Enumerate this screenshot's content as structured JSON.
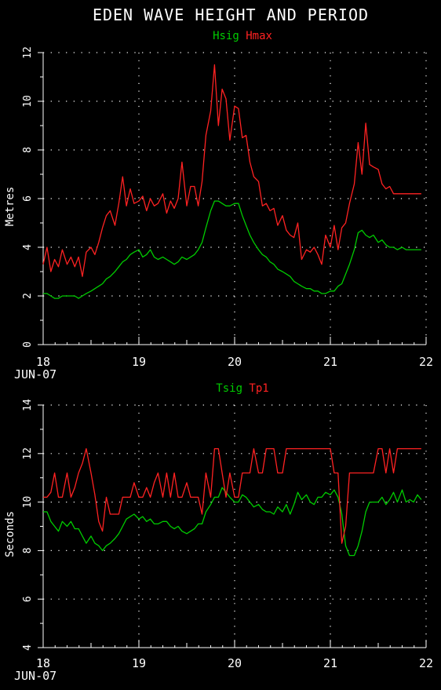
{
  "title": "EDEN WAVE HEIGHT AND PERIOD",
  "colors": {
    "background": "#000000",
    "axis": "#ffffff",
    "green": "#00cc00",
    "red": "#ff2222"
  },
  "chart_data": [
    {
      "type": "line",
      "ylabel": "Metres",
      "xlabel": "JUN-07",
      "legend": [
        {
          "name": "Hsig",
          "color": "#00cc00"
        },
        {
          "name": "Hmax",
          "color": "#ff2222"
        }
      ],
      "xlim": [
        18,
        22
      ],
      "ylim": [
        0,
        12
      ],
      "x_ticks": [
        18,
        19,
        20,
        21,
        22
      ],
      "y_ticks": [
        0,
        2,
        4,
        6,
        8,
        10,
        12
      ],
      "grid": true,
      "series": [
        {
          "name": "Hsig",
          "color": "#00cc00",
          "x": [
            18.0,
            18.04,
            18.08,
            18.12,
            18.16,
            18.2,
            18.25,
            18.29,
            18.33,
            18.37,
            18.41,
            18.45,
            18.5,
            18.54,
            18.58,
            18.62,
            18.66,
            18.7,
            18.75,
            18.79,
            18.83,
            18.87,
            18.91,
            18.95,
            19.0,
            19.04,
            19.08,
            19.12,
            19.16,
            19.2,
            19.25,
            19.29,
            19.33,
            19.37,
            19.41,
            19.45,
            19.5,
            19.54,
            19.58,
            19.62,
            19.66,
            19.7,
            19.75,
            19.79,
            19.83,
            19.87,
            19.91,
            19.95,
            20.0,
            20.04,
            20.08,
            20.12,
            20.16,
            20.2,
            20.25,
            20.29,
            20.33,
            20.37,
            20.41,
            20.45,
            20.5,
            20.54,
            20.58,
            20.62,
            20.66,
            20.7,
            20.75,
            20.79,
            20.83,
            20.87,
            20.91,
            20.95,
            21.0,
            21.04,
            21.08,
            21.12,
            21.16,
            21.2,
            21.25,
            21.29,
            21.33,
            21.37,
            21.41,
            21.45,
            21.5,
            21.54,
            21.58,
            21.62,
            21.66,
            21.7,
            21.75,
            21.79,
            21.83,
            21.87,
            21.91,
            21.95
          ],
          "values": [
            2.1,
            2.1,
            2.0,
            1.9,
            1.9,
            2.0,
            2.0,
            2.0,
            2.0,
            1.9,
            2.0,
            2.1,
            2.2,
            2.3,
            2.4,
            2.5,
            2.7,
            2.8,
            3.0,
            3.2,
            3.4,
            3.5,
            3.7,
            3.8,
            3.9,
            3.6,
            3.7,
            3.9,
            3.6,
            3.5,
            3.6,
            3.5,
            3.4,
            3.3,
            3.4,
            3.6,
            3.5,
            3.6,
            3.7,
            3.9,
            4.2,
            4.8,
            5.5,
            5.9,
            5.9,
            5.8,
            5.7,
            5.7,
            5.8,
            5.8,
            5.3,
            4.9,
            4.5,
            4.2,
            3.9,
            3.7,
            3.6,
            3.4,
            3.3,
            3.1,
            3.0,
            2.9,
            2.8,
            2.6,
            2.5,
            2.4,
            2.3,
            2.3,
            2.2,
            2.2,
            2.1,
            2.1,
            2.2,
            2.2,
            2.4,
            2.5,
            2.9,
            3.3,
            3.9,
            4.6,
            4.7,
            4.5,
            4.4,
            4.5,
            4.2,
            4.3,
            4.1,
            4.0,
            4.0,
            3.9,
            4.0,
            3.9,
            3.9,
            3.9,
            3.9,
            3.9
          ]
        },
        {
          "name": "Hmax",
          "color": "#ff2222",
          "x": [
            18.0,
            18.04,
            18.08,
            18.12,
            18.16,
            18.2,
            18.25,
            18.29,
            18.33,
            18.37,
            18.41,
            18.45,
            18.5,
            18.54,
            18.58,
            18.62,
            18.66,
            18.7,
            18.75,
            18.79,
            18.83,
            18.87,
            18.91,
            18.95,
            19.0,
            19.04,
            19.08,
            19.12,
            19.16,
            19.2,
            19.25,
            19.29,
            19.33,
            19.37,
            19.41,
            19.45,
            19.5,
            19.54,
            19.58,
            19.62,
            19.66,
            19.7,
            19.75,
            19.79,
            19.83,
            19.87,
            19.91,
            19.95,
            20.0,
            20.04,
            20.08,
            20.12,
            20.16,
            20.2,
            20.25,
            20.29,
            20.33,
            20.37,
            20.41,
            20.45,
            20.5,
            20.54,
            20.58,
            20.62,
            20.66,
            20.7,
            20.75,
            20.79,
            20.83,
            20.87,
            20.91,
            20.95,
            21.0,
            21.04,
            21.08,
            21.12,
            21.16,
            21.2,
            21.25,
            21.29,
            21.33,
            21.37,
            21.41,
            21.45,
            21.5,
            21.54,
            21.58,
            21.62,
            21.66,
            21.7,
            21.75,
            21.79,
            21.83,
            21.87,
            21.91,
            21.95
          ],
          "values": [
            3.3,
            4.0,
            3.0,
            3.5,
            3.2,
            3.9,
            3.3,
            3.6,
            3.2,
            3.6,
            2.8,
            3.8,
            4.0,
            3.7,
            4.2,
            4.8,
            5.3,
            5.5,
            4.9,
            5.8,
            6.9,
            5.7,
            6.4,
            5.8,
            5.9,
            6.1,
            5.5,
            6.0,
            5.7,
            5.8,
            6.2,
            5.4,
            5.9,
            5.6,
            6.0,
            7.5,
            5.7,
            6.5,
            6.5,
            5.7,
            6.7,
            8.6,
            9.6,
            11.5,
            9.0,
            10.5,
            10.1,
            8.4,
            9.8,
            9.7,
            8.5,
            8.6,
            7.5,
            6.9,
            6.7,
            5.7,
            5.8,
            5.5,
            5.6,
            4.9,
            5.3,
            4.7,
            4.5,
            4.4,
            5.0,
            3.5,
            3.9,
            3.8,
            4.0,
            3.7,
            3.3,
            4.5,
            4.0,
            4.9,
            3.9,
            4.8,
            5.0,
            5.8,
            6.6,
            8.3,
            7.0,
            9.1,
            7.4,
            7.3,
            7.2,
            6.6,
            6.4,
            6.5,
            6.2,
            6.2,
            6.2,
            6.2,
            6.2,
            6.2,
            6.2,
            6.2
          ]
        }
      ]
    },
    {
      "type": "line",
      "ylabel": "Seconds",
      "xlabel": "JUN-07",
      "legend": [
        {
          "name": "Tsig",
          "color": "#00cc00"
        },
        {
          "name": "Tp1",
          "color": "#ff2222"
        }
      ],
      "xlim": [
        18,
        22
      ],
      "ylim": [
        4,
        14
      ],
      "x_ticks": [
        18,
        19,
        20,
        21,
        22
      ],
      "y_ticks": [
        4,
        6,
        8,
        10,
        12,
        14
      ],
      "grid": true,
      "series": [
        {
          "name": "Tsig",
          "color": "#00cc00",
          "x": [
            18.0,
            18.04,
            18.08,
            18.12,
            18.16,
            18.2,
            18.25,
            18.29,
            18.33,
            18.37,
            18.41,
            18.45,
            18.5,
            18.54,
            18.58,
            18.62,
            18.66,
            18.7,
            18.75,
            18.79,
            18.83,
            18.87,
            18.91,
            18.95,
            19.0,
            19.04,
            19.08,
            19.12,
            19.16,
            19.2,
            19.25,
            19.29,
            19.33,
            19.37,
            19.41,
            19.45,
            19.5,
            19.54,
            19.58,
            19.62,
            19.66,
            19.7,
            19.75,
            19.79,
            19.83,
            19.87,
            19.91,
            19.95,
            20.0,
            20.04,
            20.08,
            20.12,
            20.16,
            20.2,
            20.25,
            20.29,
            20.33,
            20.37,
            20.41,
            20.45,
            20.5,
            20.54,
            20.58,
            20.62,
            20.66,
            20.7,
            20.75,
            20.79,
            20.83,
            20.87,
            20.91,
            20.95,
            21.0,
            21.04,
            21.08,
            21.12,
            21.16,
            21.2,
            21.25,
            21.29,
            21.33,
            21.37,
            21.41,
            21.45,
            21.5,
            21.54,
            21.58,
            21.62,
            21.66,
            21.7,
            21.75,
            21.79,
            21.83,
            21.87,
            21.91,
            21.95
          ],
          "values": [
            9.6,
            9.6,
            9.2,
            9.0,
            8.8,
            9.2,
            9.0,
            9.2,
            8.9,
            8.9,
            8.6,
            8.3,
            8.6,
            8.3,
            8.2,
            8.0,
            8.2,
            8.3,
            8.5,
            8.7,
            9.0,
            9.3,
            9.4,
            9.5,
            9.3,
            9.4,
            9.2,
            9.3,
            9.1,
            9.1,
            9.2,
            9.2,
            9.0,
            8.9,
            9.0,
            8.8,
            8.7,
            8.8,
            8.9,
            9.1,
            9.1,
            9.6,
            9.9,
            10.2,
            10.2,
            10.6,
            10.4,
            10.2,
            10.0,
            10.0,
            10.3,
            10.2,
            10.0,
            9.8,
            9.9,
            9.7,
            9.6,
            9.6,
            9.5,
            9.8,
            9.6,
            9.9,
            9.5,
            9.9,
            10.4,
            10.1,
            10.3,
            10.0,
            9.9,
            10.2,
            10.2,
            10.4,
            10.3,
            10.5,
            10.2,
            9.5,
            8.2,
            7.8,
            7.8,
            8.2,
            8.8,
            9.6,
            10.0,
            10.0,
            10.0,
            10.2,
            9.9,
            10.1,
            10.4,
            10.0,
            10.5,
            10.0,
            10.1,
            10.0,
            10.3,
            10.1
          ]
        },
        {
          "name": "Tp1",
          "color": "#ff2222",
          "x": [
            18.0,
            18.04,
            18.08,
            18.12,
            18.16,
            18.2,
            18.25,
            18.29,
            18.33,
            18.37,
            18.41,
            18.45,
            18.5,
            18.54,
            18.58,
            18.62,
            18.66,
            18.7,
            18.75,
            18.79,
            18.83,
            18.87,
            18.91,
            18.95,
            19.0,
            19.04,
            19.08,
            19.12,
            19.16,
            19.2,
            19.25,
            19.29,
            19.33,
            19.37,
            19.41,
            19.45,
            19.5,
            19.54,
            19.58,
            19.62,
            19.66,
            19.7,
            19.75,
            19.79,
            19.83,
            19.87,
            19.91,
            19.95,
            20.0,
            20.04,
            20.08,
            20.12,
            20.16,
            20.2,
            20.25,
            20.29,
            20.33,
            20.37,
            20.41,
            20.45,
            20.5,
            20.54,
            20.58,
            20.62,
            20.66,
            20.7,
            20.75,
            20.79,
            20.83,
            20.87,
            20.91,
            20.95,
            21.0,
            21.04,
            21.08,
            21.12,
            21.16,
            21.2,
            21.25,
            21.29,
            21.33,
            21.37,
            21.41,
            21.45,
            21.5,
            21.54,
            21.58,
            21.62,
            21.66,
            21.7,
            21.75,
            21.79,
            21.83,
            21.87,
            21.91,
            21.95
          ],
          "values": [
            10.2,
            10.2,
            10.4,
            11.2,
            10.2,
            10.2,
            11.2,
            10.2,
            10.6,
            11.2,
            11.6,
            12.2,
            11.2,
            10.3,
            9.2,
            8.8,
            10.2,
            9.5,
            9.5,
            9.5,
            10.2,
            10.2,
            10.2,
            10.8,
            10.2,
            10.2,
            10.6,
            10.2,
            10.8,
            11.2,
            10.2,
            11.2,
            10.2,
            11.2,
            10.2,
            10.2,
            10.8,
            10.2,
            10.2,
            10.2,
            9.5,
            11.2,
            10.2,
            12.2,
            12.2,
            11.2,
            10.2,
            11.2,
            10.2,
            10.2,
            11.2,
            11.2,
            11.2,
            12.2,
            11.2,
            11.2,
            12.2,
            12.2,
            12.2,
            11.2,
            11.2,
            12.2,
            12.2,
            12.2,
            12.2,
            12.2,
            12.2,
            12.2,
            12.2,
            12.2,
            12.2,
            12.2,
            12.2,
            11.2,
            11.2,
            8.3,
            9.0,
            11.2,
            11.2,
            11.2,
            11.2,
            11.2,
            11.2,
            11.2,
            12.2,
            12.2,
            11.2,
            12.2,
            11.2,
            12.2,
            12.2,
            12.2,
            12.2,
            12.2,
            12.2,
            12.2
          ]
        }
      ]
    }
  ]
}
